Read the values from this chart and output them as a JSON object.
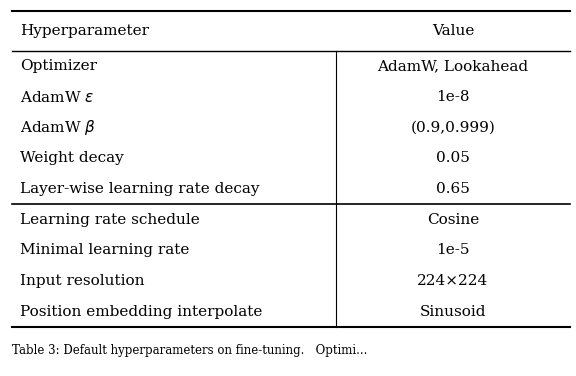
{
  "header": [
    "Hyperparameter",
    "Value"
  ],
  "group1": [
    [
      "Optimizer",
      "AdamW, Lookahead"
    ],
    [
      "AdamW $\\epsilon$",
      "1e-8"
    ],
    [
      "AdamW $\\beta$",
      "(0.9,0.999)"
    ],
    [
      "Weight decay",
      "0.05"
    ],
    [
      "Layer-wise learning rate decay",
      "0.65"
    ]
  ],
  "group2": [
    [
      "Learning rate schedule",
      "Cosine"
    ],
    [
      "Minimal learning rate",
      "1e-5"
    ],
    [
      "Input resolution",
      "224×224"
    ],
    [
      "Position embedding interpolate",
      "Sinusoid"
    ]
  ],
  "caption": "Table 3: Default hyperparameters on fine-tuning.   Optimi...",
  "bg_color": "#ffffff",
  "text_color": "#000000",
  "font_size": 11,
  "col_split": 0.58
}
